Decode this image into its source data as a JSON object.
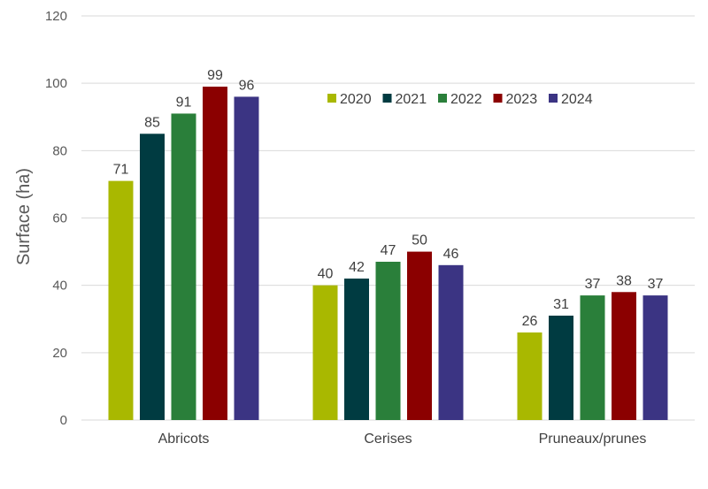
{
  "chart_data": {
    "type": "bar",
    "title": "",
    "xlabel": "",
    "ylabel": "Surface (ha)",
    "ylim": [
      0,
      120
    ],
    "yticks": [
      0,
      20,
      40,
      60,
      80,
      100,
      120
    ],
    "grid": true,
    "legend_position": "top-right",
    "categories": [
      "Abricots",
      "Cerises",
      "Pruneaux/prunes"
    ],
    "series": [
      {
        "name": "2020",
        "color": "#a9b800",
        "values": [
          71,
          40,
          26
        ]
      },
      {
        "name": "2021",
        "color": "#003b41",
        "values": [
          85,
          42,
          31
        ]
      },
      {
        "name": "2022",
        "color": "#2a7f3a",
        "values": [
          91,
          47,
          37
        ]
      },
      {
        "name": "2023",
        "color": "#8b0000",
        "values": [
          99,
          50,
          38
        ]
      },
      {
        "name": "2024",
        "color": "#3b3483",
        "values": [
          96,
          46,
          37
        ]
      }
    ]
  }
}
